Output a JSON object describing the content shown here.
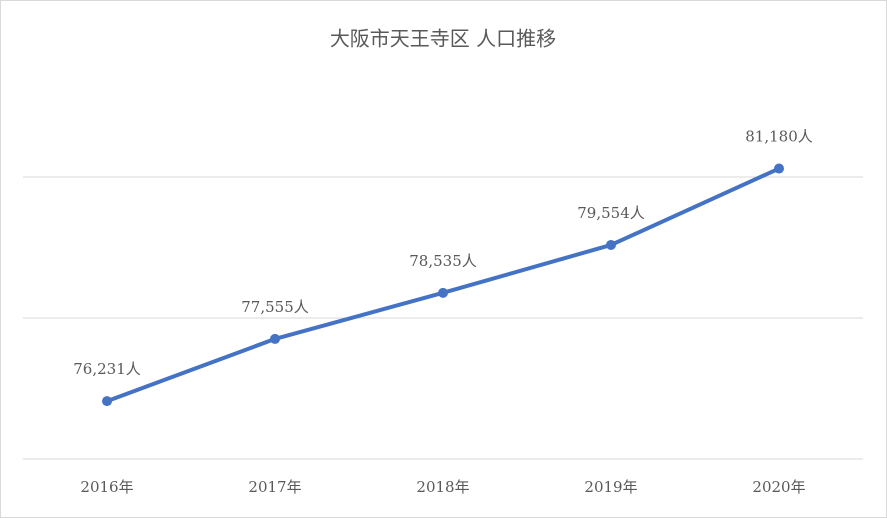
{
  "chart_data": {
    "type": "line",
    "title": "大阪市天王寺区 人口推移",
    "categories": [
      "2016年",
      "2017年",
      "2018年",
      "2019年",
      "2020年"
    ],
    "series": [
      {
        "name": "人口",
        "color": "#4472c4",
        "values": [
          76231,
          77555,
          78535,
          79554,
          81180
        ],
        "value_labels": [
          "76,231人",
          "77,555人",
          "78,535人",
          "79,554人",
          "81,180人"
        ]
      }
    ],
    "ylim": [
      75000,
      82000
    ],
    "yticks": [
      75000,
      78000,
      81000
    ],
    "grid": true
  }
}
